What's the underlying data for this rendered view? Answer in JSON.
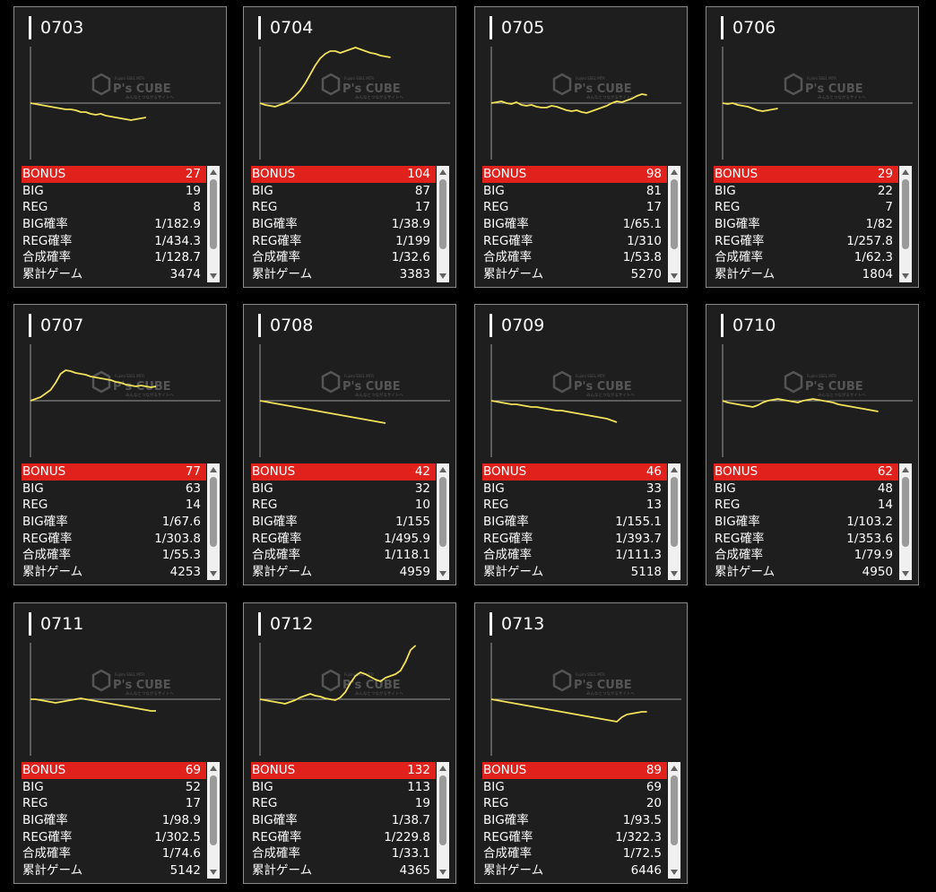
{
  "labels": {
    "bonus": "BONUS",
    "big": "BIG",
    "reg": "REG",
    "big_rate": "BIG確率",
    "reg_rate": "REG確率",
    "total_rate": "合成確率",
    "games": "累計ゲーム"
  },
  "watermark": {
    "text": "P's CUBE",
    "top_text": "Fujimi SSEL MTR",
    "sub_text": "みんなとつながるサイトへ"
  },
  "colors": {
    "background": "#000000",
    "card": "#1e1e1e",
    "bonus_bar": "#e0211c",
    "line": "#f2e15a"
  },
  "machines": [
    {
      "id": "0703",
      "bonus": "27",
      "big": "19",
      "reg": "8",
      "big_rate": "1/182.9",
      "reg_rate": "1/434.3",
      "total_rate": "1/128.7",
      "games": "3474",
      "trend": [
        0,
        -1,
        -2,
        -3,
        -4,
        -5,
        -6,
        -7,
        -7,
        -8,
        -10,
        -10,
        -12,
        -13,
        -12,
        -14,
        -15,
        -16,
        -17,
        -18,
        -19,
        -18,
        -17,
        -16
      ]
    },
    {
      "id": "0704",
      "bonus": "104",
      "big": "87",
      "reg": "17",
      "big_rate": "1/38.9",
      "reg_rate": "1/199",
      "total_rate": "1/32.6",
      "games": "3383",
      "trend": [
        0,
        -2,
        -3,
        -4,
        -2,
        0,
        3,
        8,
        14,
        22,
        32,
        42,
        50,
        55,
        58,
        58,
        56,
        58,
        60,
        62,
        60,
        58,
        56,
        55,
        53,
        52,
        51
      ]
    },
    {
      "id": "0705",
      "bonus": "98",
      "big": "81",
      "reg": "17",
      "big_rate": "1/65.1",
      "reg_rate": "1/310",
      "total_rate": "1/53.8",
      "games": "5270",
      "trend": [
        0,
        1,
        2,
        0,
        -1,
        1,
        -2,
        -3,
        -2,
        -4,
        -5,
        -5,
        -3,
        -4,
        -6,
        -8,
        -9,
        -8,
        -10,
        -11,
        -9,
        -7,
        -5,
        -3,
        0,
        2,
        1,
        3,
        5,
        8,
        10,
        9
      ]
    },
    {
      "id": "0706",
      "bonus": "29",
      "big": "22",
      "reg": "7",
      "big_rate": "1/82",
      "reg_rate": "1/257.8",
      "total_rate": "1/62.3",
      "games": "1804",
      "trend": [
        0,
        -1,
        0,
        -2,
        -3,
        -4,
        -6,
        -8,
        -9,
        -8,
        -7,
        -6
      ]
    },
    {
      "id": "0707",
      "bonus": "77",
      "big": "63",
      "reg": "14",
      "big_rate": "1/67.6",
      "reg_rate": "1/303.8",
      "total_rate": "1/55.3",
      "games": "4253",
      "trend": [
        0,
        2,
        4,
        8,
        12,
        20,
        30,
        34,
        33,
        31,
        30,
        29,
        27,
        26,
        25,
        24,
        23,
        21,
        20,
        18,
        17,
        16,
        17,
        16,
        15,
        16
      ]
    },
    {
      "id": "0708",
      "bonus": "42",
      "big": "32",
      "reg": "10",
      "big_rate": "1/155",
      "reg_rate": "1/495.9",
      "total_rate": "1/118.1",
      "games": "4959",
      "trend": [
        0,
        -1,
        -2,
        -3,
        -4,
        -5,
        -6,
        -7,
        -8,
        -9,
        -10,
        -11,
        -12,
        -13,
        -14,
        -15,
        -16,
        -17,
        -18,
        -19,
        -20,
        -21,
        -22,
        -23,
        -24,
        -25
      ]
    },
    {
      "id": "0709",
      "bonus": "46",
      "big": "33",
      "reg": "13",
      "big_rate": "1/155.1",
      "reg_rate": "1/393.7",
      "total_rate": "1/111.3",
      "games": "5118",
      "trend": [
        0,
        -1,
        -2,
        -3,
        -4,
        -4,
        -5,
        -6,
        -7,
        -7,
        -8,
        -9,
        -10,
        -11,
        -11,
        -12,
        -13,
        -14,
        -15,
        -16,
        -17,
        -18,
        -19,
        -20,
        -22,
        -24
      ]
    },
    {
      "id": "0710",
      "bonus": "62",
      "big": "48",
      "reg": "14",
      "big_rate": "1/103.2",
      "reg_rate": "1/353.6",
      "total_rate": "1/79.9",
      "games": "4950",
      "trend": [
        0,
        -2,
        -3,
        -4,
        -5,
        -6,
        -7,
        -5,
        -2,
        0,
        1,
        2,
        1,
        0,
        -1,
        -2,
        0,
        1,
        2,
        1,
        0,
        -1,
        -2,
        -4,
        -5,
        -6,
        -7,
        -8,
        -9,
        -10,
        -11,
        -12
      ]
    },
    {
      "id": "0711",
      "bonus": "69",
      "big": "52",
      "reg": "17",
      "big_rate": "1/98.9",
      "reg_rate": "1/302.5",
      "total_rate": "1/74.6",
      "games": "5142",
      "trend": [
        0,
        0,
        -1,
        -2,
        -3,
        -4,
        -3,
        -2,
        -1,
        0,
        1,
        0,
        -1,
        -2,
        -3,
        -4,
        -5,
        -6,
        -7,
        -8,
        -9,
        -10,
        -11,
        -12,
        -13,
        -13
      ]
    },
    {
      "id": "0712",
      "bonus": "132",
      "big": "113",
      "reg": "19",
      "big_rate": "1/38.7",
      "reg_rate": "1/229.8",
      "total_rate": "1/33.1",
      "games": "4365",
      "trend": [
        0,
        -1,
        -2,
        -3,
        -4,
        -5,
        -3,
        -1,
        2,
        4,
        6,
        4,
        3,
        1,
        0,
        -1,
        2,
        8,
        18,
        26,
        30,
        28,
        25,
        22,
        20,
        24,
        26,
        28,
        32,
        42,
        55,
        60
      ]
    },
    {
      "id": "0713",
      "bonus": "89",
      "big": "69",
      "reg": "20",
      "big_rate": "1/93.5",
      "reg_rate": "1/322.3",
      "total_rate": "1/72.5",
      "games": "6446",
      "trend": [
        0,
        -1,
        -2,
        -3,
        -4,
        -5,
        -6,
        -7,
        -8,
        -9,
        -10,
        -11,
        -12,
        -13,
        -14,
        -15,
        -16,
        -17,
        -18,
        -19,
        -20,
        -21,
        -22,
        -23,
        -24,
        -25,
        -20,
        -17,
        -16,
        -15,
        -14,
        -14
      ]
    }
  ]
}
